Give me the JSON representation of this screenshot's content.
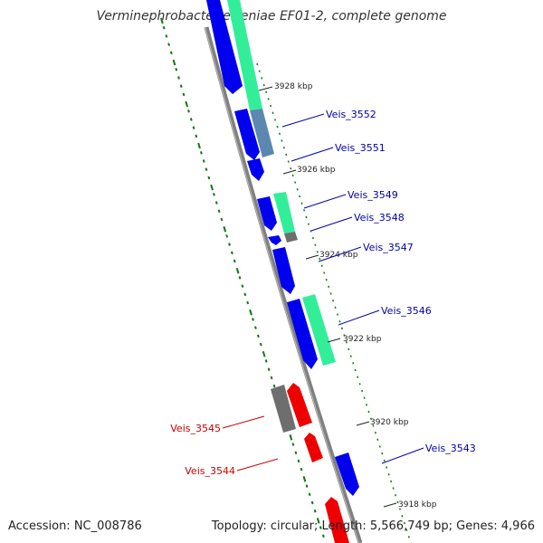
{
  "title": "Verminephrobacter eiseniae EF01-2, complete genome",
  "footer": {
    "accession": "Accession: NC_008786",
    "summary": "Topology: circular; Length: 5,566,749 bp; Genes: 4,966"
  },
  "colors": {
    "backbone": "#808080",
    "forward_cds": "#0000ee",
    "reverse_cds": "#ee0000",
    "cog_green": "#33ee99",
    "cog_steel": "#5b87b0",
    "cog_gray": "#6e6e6e",
    "gc_skew": "#117711",
    "forward_label": "#0000aa",
    "reverse_label": "#cc0000"
  },
  "tick_labels": [
    "3928 kbp",
    "3926 kbp",
    "3924 kbp",
    "3922 kbp",
    "3920 kbp",
    "3918 kbp"
  ],
  "gene_labels": [
    {
      "text": "Veis_3552",
      "strand": "forward"
    },
    {
      "text": "Veis_3551",
      "strand": "forward"
    },
    {
      "text": "Veis_3549",
      "strand": "forward"
    },
    {
      "text": "Veis_3548",
      "strand": "forward"
    },
    {
      "text": "Veis_3547",
      "strand": "forward"
    },
    {
      "text": "Veis_3546",
      "strand": "forward"
    },
    {
      "text": "Veis_3545",
      "strand": "reverse"
    },
    {
      "text": "Veis_3544",
      "strand": "reverse"
    },
    {
      "text": "Veis_3543",
      "strand": "forward"
    }
  ]
}
